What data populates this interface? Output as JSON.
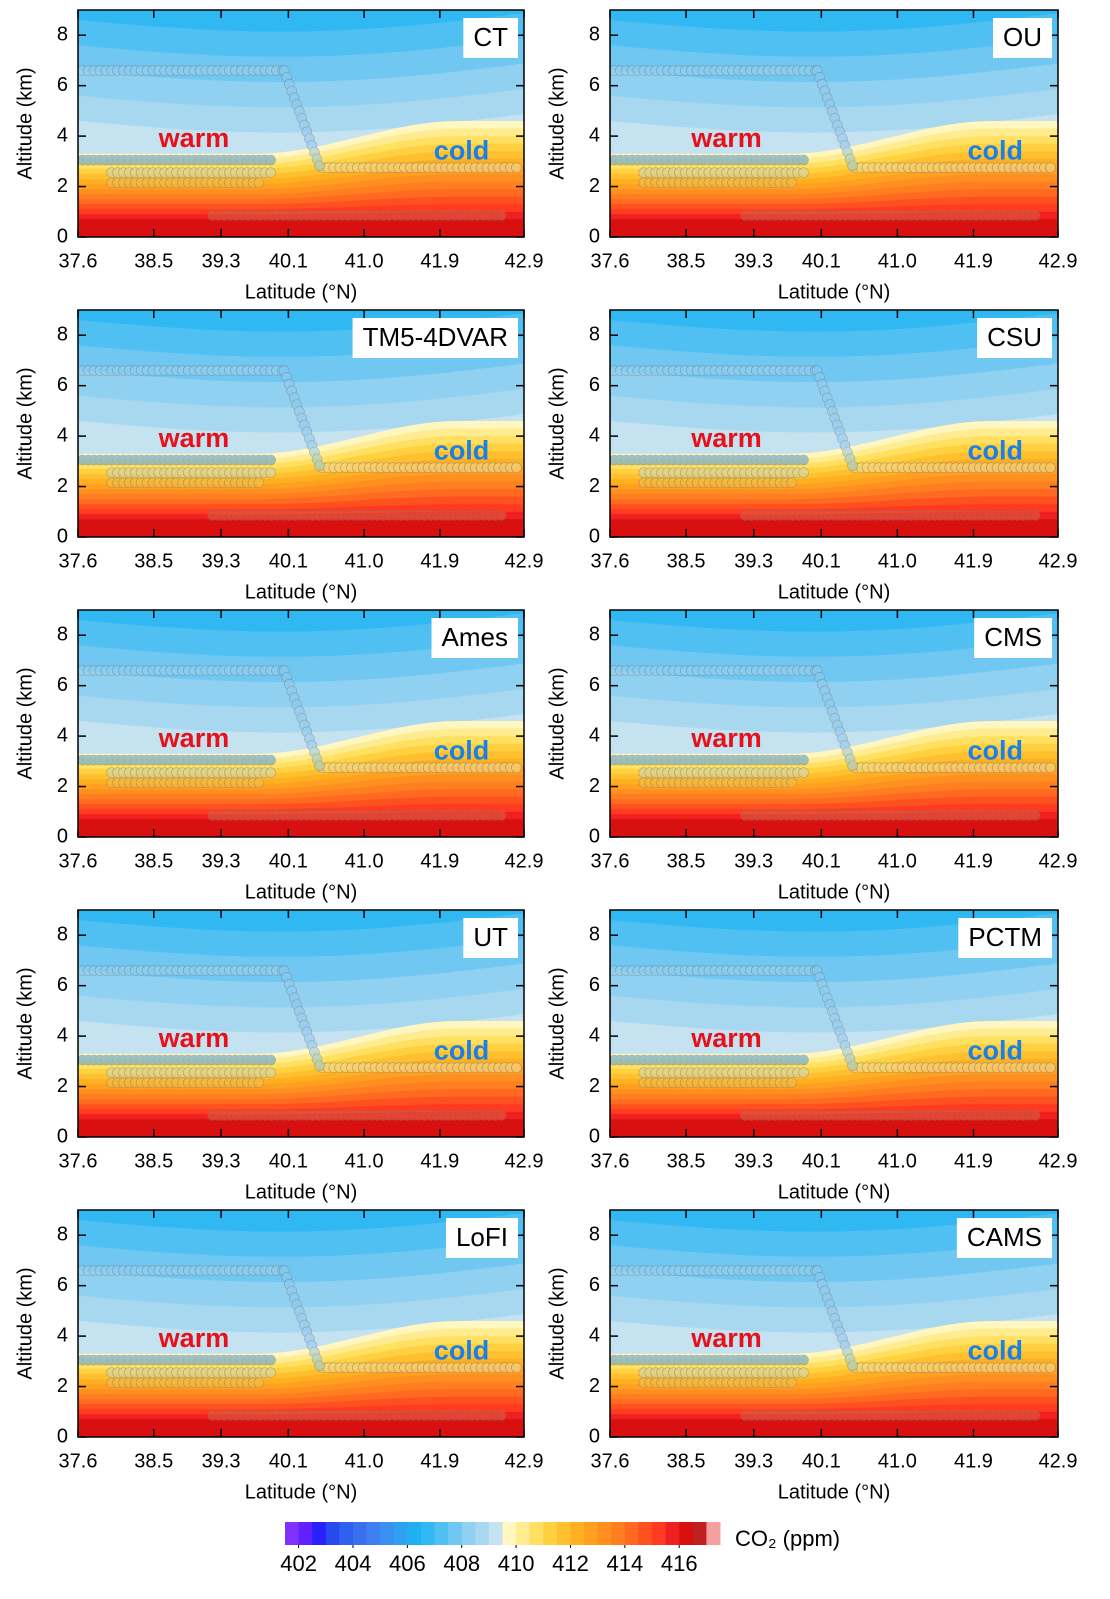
{
  "chart_data": [
    {
      "type": "contour",
      "title": "CT",
      "annotations": [
        "warm",
        "cold"
      ],
      "xlabel": "Latitude (°N)",
      "ylabel": "Altitude (km)",
      "xlim": [
        37.6,
        42.9
      ],
      "ylim": [
        0,
        9
      ],
      "xticks": [
        37.6,
        38.5,
        39.3,
        40.1,
        {
          "value": 41,
          "label": "41.0"
        },
        41.9,
        42.9
      ],
      "yticks": [
        0,
        2,
        4,
        6,
        8
      ]
    },
    {
      "type": "contour",
      "title": "OU",
      "annotations": [
        "warm",
        "cold"
      ],
      "xlabel": "Latitude (°N)",
      "ylabel": "Altitude (km)",
      "xlim": [
        37.6,
        42.9
      ],
      "ylim": [
        0,
        9
      ],
      "xticks": [
        37.6,
        38.5,
        39.3,
        40.1,
        {
          "value": 41,
          "label": "41.0"
        },
        41.9,
        42.9
      ],
      "yticks": [
        0,
        2,
        4,
        6,
        8
      ]
    },
    {
      "type": "contour",
      "title": "TM5-4DVAR",
      "annotations": [
        "warm",
        "cold"
      ],
      "xlabel": "Latitude (°N)",
      "ylabel": "Altitude (km)",
      "xlim": [
        37.6,
        42.9
      ],
      "ylim": [
        0,
        9
      ],
      "xticks": [
        37.6,
        38.5,
        39.3,
        40.1,
        {
          "value": 41,
          "label": "41.0"
        },
        41.9,
        42.9
      ],
      "yticks": [
        0,
        2,
        4,
        6,
        8
      ]
    },
    {
      "type": "contour",
      "title": "CSU",
      "annotations": [
        "warm",
        "cold"
      ],
      "xlabel": "Latitude (°N)",
      "ylabel": "Altitude (km)",
      "xlim": [
        37.6,
        42.9
      ],
      "ylim": [
        0,
        9
      ],
      "xticks": [
        37.6,
        38.5,
        39.3,
        40.1,
        {
          "value": 41,
          "label": "41.0"
        },
        41.9,
        42.9
      ],
      "yticks": [
        0,
        2,
        4,
        6,
        8
      ]
    },
    {
      "type": "contour",
      "title": "Ames",
      "annotations": [
        "warm",
        "cold"
      ],
      "xlabel": "Latitude (°N)",
      "ylabel": "Altitude (km)",
      "xlim": [
        37.6,
        42.9
      ],
      "ylim": [
        0,
        9
      ],
      "xticks": [
        37.6,
        38.5,
        39.3,
        40.1,
        {
          "value": 41,
          "label": "41.0"
        },
        41.9,
        42.9
      ],
      "yticks": [
        0,
        2,
        4,
        6,
        8
      ]
    },
    {
      "type": "contour",
      "title": "CMS",
      "annotations": [
        "warm",
        "cold"
      ],
      "xlabel": "Latitude (°N)",
      "ylabel": "Altitude (km)",
      "xlim": [
        37.6,
        42.9
      ],
      "ylim": [
        0,
        9
      ],
      "xticks": [
        37.6,
        38.5,
        39.3,
        40.1,
        {
          "value": 41,
          "label": "41.0"
        },
        41.9,
        42.9
      ],
      "yticks": [
        0,
        2,
        4,
        6,
        8
      ]
    },
    {
      "type": "contour",
      "title": "UT",
      "annotations": [
        "warm",
        "cold"
      ],
      "xlabel": "Latitude (°N)",
      "ylabel": "Altitude (km)",
      "xlim": [
        37.6,
        42.9
      ],
      "ylim": [
        0,
        9
      ],
      "xticks": [
        37.6,
        38.5,
        39.3,
        40.1,
        {
          "value": 41,
          "label": "41.0"
        },
        41.9,
        42.9
      ],
      "yticks": [
        0,
        2,
        4,
        6,
        8
      ]
    },
    {
      "type": "contour",
      "title": "PCTM",
      "annotations": [
        "warm",
        "cold"
      ],
      "xlabel": "Latitude (°N)",
      "ylabel": "Altitude (km)",
      "xlim": [
        37.6,
        42.9
      ],
      "ylim": [
        0,
        9
      ],
      "xticks": [
        37.6,
        38.5,
        39.3,
        40.1,
        {
          "value": 41,
          "label": "41.0"
        },
        41.9,
        42.9
      ],
      "yticks": [
        0,
        2,
        4,
        6,
        8
      ]
    },
    {
      "type": "contour",
      "title": "LoFI",
      "annotations": [
        "warm",
        "cold"
      ],
      "xlabel": "Latitude (°N)",
      "ylabel": "Altitude (km)",
      "xlim": [
        37.6,
        42.9
      ],
      "ylim": [
        0,
        9
      ],
      "xticks": [
        37.6,
        38.5,
        39.3,
        40.1,
        {
          "value": 41,
          "label": "41.0"
        },
        41.9,
        42.9
      ],
      "yticks": [
        0,
        2,
        4,
        6,
        8
      ]
    },
    {
      "type": "contour",
      "title": "CAMS",
      "annotations": [
        "warm",
        "cold"
      ],
      "xlabel": "Latitude (°N)",
      "ylabel": "Altitude (km)",
      "xlim": [
        37.6,
        42.9
      ],
      "ylim": [
        0,
        9
      ],
      "xticks": [
        37.6,
        38.5,
        39.3,
        40.1,
        {
          "value": 41,
          "label": "41.0"
        },
        41.9,
        42.9
      ],
      "yticks": [
        0,
        2,
        4,
        6,
        8
      ]
    }
  ],
  "colorbar": {
    "label": "CO₂ (ppm)",
    "lim": [
      401.5,
      417.5
    ],
    "ticks": [
      402,
      404,
      406,
      408,
      410,
      412,
      414,
      416
    ],
    "colors": [
      "#8030ff",
      "#6020ff",
      "#2a20ff",
      "#2848f0",
      "#3060ee",
      "#3a70ee",
      "#3f80f0",
      "#3a90f0",
      "#30a0f2",
      "#20b0f2",
      "#30b8f2",
      "#50c0f2",
      "#70c8f2",
      "#90d0f0",
      "#a8d8f0",
      "#c4e2f0",
      "#fff6c0",
      "#ffec90",
      "#ffe060",
      "#ffd040",
      "#ffc030",
      "#ffb020",
      "#ffa020",
      "#ff9020",
      "#ff7e20",
      "#ff6a20",
      "#ff5020",
      "#ff3a20",
      "#f02020",
      "#d81010",
      "#c02020",
      "#f4a0a0"
    ]
  }
}
